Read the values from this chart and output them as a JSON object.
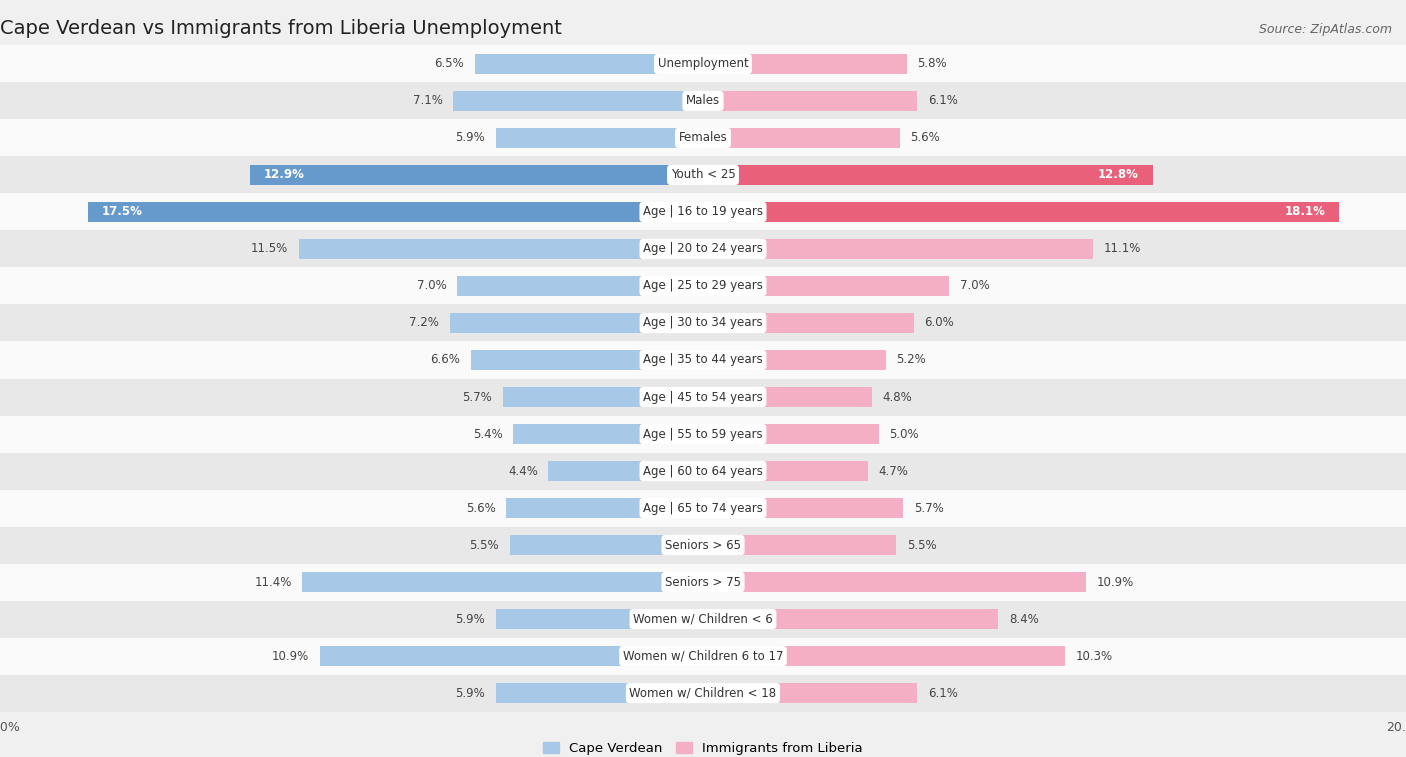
{
  "title": "Cape Verdean vs Immigrants from Liberia Unemployment",
  "source": "Source: ZipAtlas.com",
  "categories": [
    "Unemployment",
    "Males",
    "Females",
    "Youth < 25",
    "Age | 16 to 19 years",
    "Age | 20 to 24 years",
    "Age | 25 to 29 years",
    "Age | 30 to 34 years",
    "Age | 35 to 44 years",
    "Age | 45 to 54 years",
    "Age | 55 to 59 years",
    "Age | 60 to 64 years",
    "Age | 65 to 74 years",
    "Seniors > 65",
    "Seniors > 75",
    "Women w/ Children < 6",
    "Women w/ Children 6 to 17",
    "Women w/ Children < 18"
  ],
  "cape_verdean": [
    6.5,
    7.1,
    5.9,
    12.9,
    17.5,
    11.5,
    7.0,
    7.2,
    6.6,
    5.7,
    5.4,
    4.4,
    5.6,
    5.5,
    11.4,
    5.9,
    10.9,
    5.9
  ],
  "liberia": [
    5.8,
    6.1,
    5.6,
    12.8,
    18.1,
    11.1,
    7.0,
    6.0,
    5.2,
    4.8,
    5.0,
    4.7,
    5.7,
    5.5,
    10.9,
    8.4,
    10.3,
    6.1
  ],
  "cape_verdean_color": "#a8c8e8",
  "liberia_color": "#f4afc4",
  "cape_verdean_highlight_color": "#6699cc",
  "liberia_highlight_color": "#e8607a",
  "background_color": "#f0f0f0",
  "row_bg_white": "#fafafa",
  "row_bg_gray": "#e8e8e8",
  "xlim": 20.0,
  "legend_label_cv": "Cape Verdean",
  "legend_label_lib": "Immigrants from Liberia",
  "title_fontsize": 14,
  "source_fontsize": 9,
  "bar_label_fontsize": 8.5,
  "category_fontsize": 8.5,
  "highlight_rows": [
    "Youth < 25",
    "Age | 16 to 19 years"
  ]
}
